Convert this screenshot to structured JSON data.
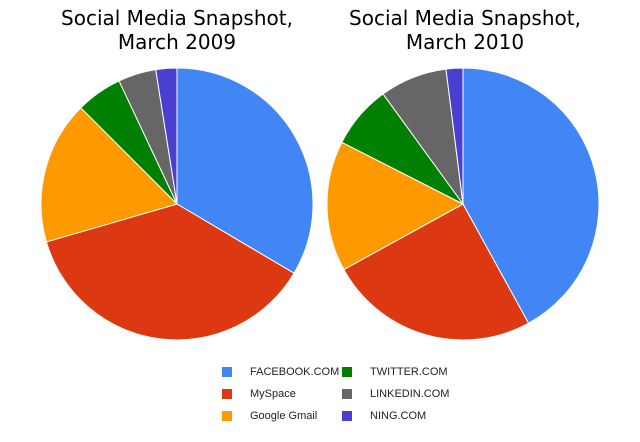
{
  "chart_data": [
    {
      "type": "pie",
      "title": "Social Media Snapshot,\nMarch 2009",
      "categories": [
        "FACEBOOK.COM",
        "MySpace",
        "Google Gmail",
        "TWITTER.COM",
        "LINKEDIN.COM",
        "NING.COM"
      ],
      "values": [
        33.5,
        37.0,
        17.0,
        5.5,
        4.5,
        2.5
      ],
      "colors": [
        "#4285f4",
        "#dc3912",
        "#ff9900",
        "#008000",
        "#666666",
        "#4b3fd1"
      ],
      "start": "12 o'clock",
      "direction": "clockwise"
    },
    {
      "type": "pie",
      "title": "Social Media Snapshot,\nMarch 2010",
      "categories": [
        "FACEBOOK.COM",
        "MySpace",
        "Google Gmail",
        "TWITTER.COM",
        "LINKEDIN.COM",
        "NING.COM"
      ],
      "values": [
        42.0,
        25.0,
        15.5,
        7.5,
        8.0,
        2.0
      ],
      "colors": [
        "#4285f4",
        "#dc3912",
        "#ff9900",
        "#008000",
        "#666666",
        "#4b3fd1"
      ],
      "start": "12 o'clock",
      "direction": "clockwise"
    }
  ],
  "legend": {
    "placement": "bottom",
    "items": [
      {
        "label": "FACEBOOK.COM",
        "color": "#4285f4"
      },
      {
        "label": "MySpace",
        "color": "#dc3912"
      },
      {
        "label": "Google Gmail",
        "color": "#ff9900"
      },
      {
        "label": "TWITTER.COM",
        "color": "#008000"
      },
      {
        "label": "LINKEDIN.COM",
        "color": "#666666"
      },
      {
        "label": "NING.COM",
        "color": "#4b3fd1"
      }
    ]
  }
}
